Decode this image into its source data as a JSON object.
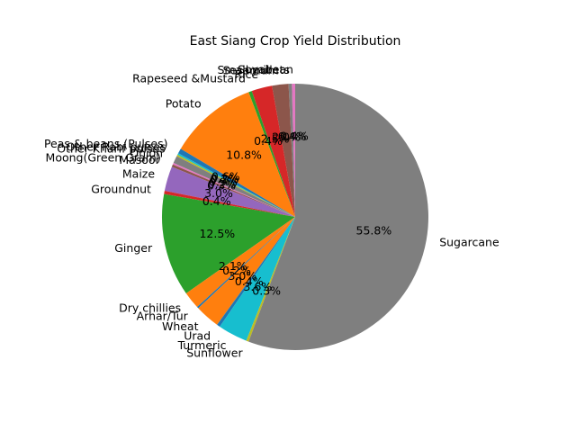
{
  "chart_data": {
    "type": "pie",
    "title": "East Siang Crop Yield Distribution",
    "start_angle_deg": 90,
    "direction": "counterclockwise",
    "slices": [
      {
        "label": "Soyabean",
        "value": 0.4,
        "pct_label": "0.4%",
        "color": "#e377c2"
      },
      {
        "label": "Small millets",
        "value": 0.4,
        "pct_label": "0.4%",
        "color": "#7f7f7f"
      },
      {
        "label": "Sesamum",
        "value": 2.0,
        "pct_label": "2.0%",
        "color": "#8c564b"
      },
      {
        "label": "Rice",
        "value": 2.5,
        "pct_label": "2.5%",
        "color": "#d62728"
      },
      {
        "label": "Rapeseed &Mustard",
        "value": 0.4,
        "pct_label": "0.4%",
        "color": "#2ca02c"
      },
      {
        "label": "Potato",
        "value": 10.8,
        "pct_label": "10.8%",
        "color": "#ff7f0e"
      },
      {
        "label": "Peas & beans (Pulses)",
        "value": 0.6,
        "pct_label": "0.6%",
        "color": "#1f77b4"
      },
      {
        "label": "Other Rabi pulses",
        "value": 0.2,
        "pct_label": "0.2%",
        "color": "#17becf"
      },
      {
        "label": "Other Kharif pulses",
        "value": 0.2,
        "pct_label": "0.2%",
        "color": "#bcbd22"
      },
      {
        "label": "Onion",
        "value": 0.9,
        "pct_label": "0.9%",
        "color": "#7f7f7f"
      },
      {
        "label": "Moong(Green Gram)",
        "value": 0.2,
        "pct_label": "0.2%",
        "color": "#e377c2"
      },
      {
        "label": "Masoor",
        "value": 0.3,
        "pct_label": "0.3%",
        "color": "#8c564b"
      },
      {
        "label": "Maize",
        "value": 3.0,
        "pct_label": "3.0%",
        "color": "#9467bd"
      },
      {
        "label": "Groundnut",
        "value": 0.4,
        "pct_label": "0.4%",
        "color": "#d62728"
      },
      {
        "label": "Ginger",
        "value": 12.5,
        "pct_label": "12.5%",
        "color": "#2ca02c"
      },
      {
        "label": "Dry chillies",
        "value": 2.1,
        "pct_label": "2.1%",
        "color": "#ff7f0e"
      },
      {
        "label": "Arhar/Tur",
        "value": 0.2,
        "pct_label": "0.2%",
        "color": "#1f77b4"
      },
      {
        "label": "Wheat",
        "value": 3.0,
        "pct_label": "3.0%",
        "color": "#ff7f0e"
      },
      {
        "label": "Urad",
        "value": 0.4,
        "pct_label": "0.4%",
        "color": "#1f77b4"
      },
      {
        "label": "Turmeric",
        "value": 3.6,
        "pct_label": "3.6%",
        "color": "#17becf"
      },
      {
        "label": "Sunflower",
        "value": 0.3,
        "pct_label": "0.3%",
        "color": "#bcbd22"
      },
      {
        "label": "Sugarcane",
        "value": 55.8,
        "pct_label": "55.8%",
        "color": "#7f7f7f"
      }
    ]
  }
}
